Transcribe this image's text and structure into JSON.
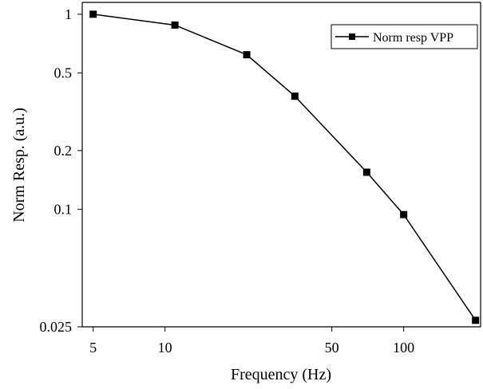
{
  "chart_data": {
    "type": "line",
    "title": "",
    "xlabel": "Frequency (Hz)",
    "ylabel": "Norm Resp. (a.u.)",
    "x_scale": "log",
    "y_scale": "log",
    "xlim": [
      4.5,
      210
    ],
    "ylim": [
      0.025,
      1.15
    ],
    "x_ticks": [
      5,
      10,
      50,
      100
    ],
    "x_tick_labels": [
      "5",
      "10",
      "50",
      "100"
    ],
    "y_ticks": [
      0.025,
      0.1,
      0.2,
      0.5,
      1
    ],
    "y_tick_labels": [
      "0.025",
      "0.1",
      "0.2",
      "0.5",
      "1"
    ],
    "grid": false,
    "legend_position": "top-right",
    "series": [
      {
        "name": "Norm resp VPP",
        "color": "#000000",
        "marker": "square",
        "x": [
          5,
          11,
          22,
          35,
          70,
          100,
          200
        ],
        "y": [
          1.0,
          0.88,
          0.62,
          0.38,
          0.155,
          0.094,
          0.027
        ]
      }
    ]
  }
}
